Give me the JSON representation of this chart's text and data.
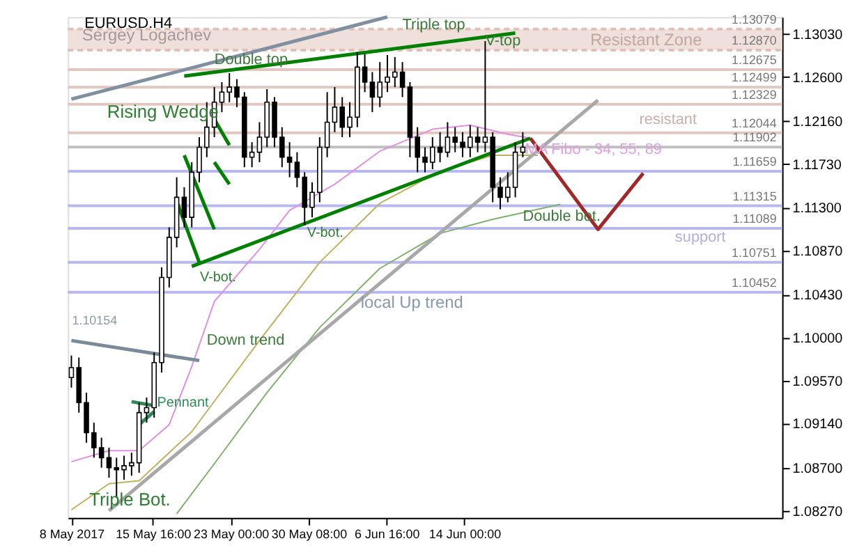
{
  "chart_data": {
    "type": "candlestick",
    "title": "EURUSD.H4",
    "xlim": [
      "2017-05-07T16:00",
      "2017-07-13T22:00"
    ],
    "xticks": [
      {
        "value": "2017-05-08T00:00",
        "label": "8 May 2017"
      },
      {
        "value": "2017-05-15T16:00",
        "label": "15 May 16:00"
      },
      {
        "value": "2017-05-23T00:00",
        "label": "23 May 00:00"
      },
      {
        "value": "2017-05-30T08:00",
        "label": "30 May 08:00"
      },
      {
        "value": "2017-06-06T16:00",
        "label": "6 Jun 16:00"
      },
      {
        "value": "2017-06-14T00:00",
        "label": "14 Jun 00:00"
      }
    ],
    "ylim": [
      1.082,
      1.132
    ],
    "yticks": [
      {
        "value": 1.0827,
        "label": "1.08270"
      },
      {
        "value": 1.087,
        "label": "1.08700"
      },
      {
        "value": 1.0914,
        "label": "1.09140"
      },
      {
        "value": 1.0957,
        "label": "1.09570"
      },
      {
        "value": 1.1,
        "label": "1.10000"
      },
      {
        "value": 1.1043,
        "label": "1.10430"
      },
      {
        "value": 1.1087,
        "label": "1.10870"
      },
      {
        "value": 1.113,
        "label": "1.11300"
      },
      {
        "value": 1.1173,
        "label": "1.11730"
      },
      {
        "value": 1.1216,
        "label": "1.12160"
      },
      {
        "value": 1.126,
        "label": "1.12600"
      },
      {
        "value": 1.1303,
        "label": "1.13030"
      }
    ],
    "grid": false,
    "series": [
      {
        "type": "candlestick",
        "color": "#000000",
        "x": [
          "2017-05-08T00:00",
          "2017-05-08T17:00",
          "2017-05-09T10:00",
          "2017-05-10T03:00",
          "2017-05-10T20:00",
          "2017-05-11T13:00",
          "2017-05-12T06:00",
          "2017-05-12T23:00",
          "2017-05-13T16:00",
          "2017-05-14T09:00",
          "2017-05-15T02:00",
          "2017-05-15T19:00",
          "2017-05-16T12:00",
          "2017-05-17T05:00",
          "2017-05-17T22:00",
          "2017-05-18T15:00",
          "2017-05-19T08:00",
          "2017-05-20T01:00",
          "2017-05-20T18:00",
          "2017-05-21T11:00",
          "2017-05-22T04:00",
          "2017-05-22T21:00",
          "2017-05-23T14:00",
          "2017-05-24T07:00",
          "2017-05-25T00:00",
          "2017-05-25T17:00",
          "2017-05-26T10:00",
          "2017-05-27T03:00",
          "2017-05-27T20:00",
          "2017-05-28T13:00",
          "2017-05-29T06:00",
          "2017-05-29T23:00",
          "2017-05-30T16:00",
          "2017-05-31T09:00",
          "2017-06-01T02:00",
          "2017-06-01T19:00",
          "2017-06-02T12:00",
          "2017-06-03T05:00",
          "2017-06-03T22:00",
          "2017-06-04T15:00",
          "2017-06-05T08:00",
          "2017-06-06T01:00",
          "2017-06-06T18:00",
          "2017-06-07T11:00",
          "2017-06-08T04:00",
          "2017-06-08T21:00",
          "2017-06-09T14:00",
          "2017-06-10T07:00",
          "2017-06-11T00:00",
          "2017-06-11T17:00",
          "2017-06-12T10:00",
          "2017-06-13T03:00",
          "2017-06-13T20:00",
          "2017-06-14T13:00",
          "2017-06-15T06:00",
          "2017-06-15T23:00",
          "2017-06-16T16:00",
          "2017-06-17T09:00",
          "2017-06-18T02:00",
          "2017-06-18T19:00",
          "2017-06-19T12:00"
        ],
        "ohlc": [
          [
            1.096,
            1.0982,
            1.095,
            1.097
          ],
          [
            1.097,
            1.098,
            1.0925,
            1.0935
          ],
          [
            1.0935,
            1.0945,
            1.0895,
            1.0905
          ],
          [
            1.0905,
            1.0915,
            1.088,
            1.089
          ],
          [
            1.089,
            1.09,
            1.087,
            1.088
          ],
          [
            1.088,
            1.089,
            1.086,
            1.087
          ],
          [
            1.087,
            1.088,
            1.084,
            1.0868
          ],
          [
            1.0868,
            1.0882,
            1.0858,
            1.0872
          ],
          [
            1.0872,
            1.0885,
            1.0862,
            1.0875
          ],
          [
            1.0875,
            1.0935,
            1.0865,
            1.0925
          ],
          [
            1.0925,
            1.094,
            1.0915,
            1.093
          ],
          [
            1.093,
            1.0985,
            1.092,
            1.0975
          ],
          [
            1.0975,
            1.107,
            1.0965,
            1.106
          ],
          [
            1.106,
            1.111,
            1.105,
            1.11
          ],
          [
            1.11,
            1.116,
            1.109,
            1.114
          ],
          [
            1.114,
            1.115,
            1.111,
            1.112
          ],
          [
            1.112,
            1.1175,
            1.111,
            1.1165
          ],
          [
            1.1165,
            1.12,
            1.1155,
            1.119
          ],
          [
            1.119,
            1.1235,
            1.118,
            1.121
          ],
          [
            1.121,
            1.125,
            1.12,
            1.1235
          ],
          [
            1.1235,
            1.1255,
            1.1225,
            1.1245
          ],
          [
            1.1245,
            1.1264,
            1.1235,
            1.125
          ],
          [
            1.125,
            1.1258,
            1.123,
            1.124
          ],
          [
            1.124,
            1.1245,
            1.117,
            1.118
          ],
          [
            1.118,
            1.1195,
            1.117,
            1.1185
          ],
          [
            1.1185,
            1.1215,
            1.1175,
            1.12
          ],
          [
            1.12,
            1.1248,
            1.119,
            1.1235
          ],
          [
            1.1235,
            1.124,
            1.119,
            1.12
          ],
          [
            1.12,
            1.121,
            1.117,
            1.118
          ],
          [
            1.118,
            1.1195,
            1.116,
            1.1175
          ],
          [
            1.1175,
            1.1185,
            1.115,
            1.116
          ],
          [
            1.116,
            1.1165,
            1.1112,
            1.113
          ],
          [
            1.113,
            1.1155,
            1.112,
            1.1145
          ],
          [
            1.1145,
            1.12,
            1.1135,
            1.119
          ],
          [
            1.119,
            1.1245,
            1.118,
            1.1215
          ],
          [
            1.1215,
            1.125,
            1.1205,
            1.123
          ],
          [
            1.123,
            1.124,
            1.12,
            1.121
          ],
          [
            1.121,
            1.1235,
            1.12,
            1.122
          ],
          [
            1.122,
            1.1285,
            1.121,
            1.127
          ],
          [
            1.127,
            1.1283,
            1.1245,
            1.1255
          ],
          [
            1.1255,
            1.1265,
            1.1225,
            1.124
          ],
          [
            1.124,
            1.1275,
            1.123,
            1.1255
          ],
          [
            1.1255,
            1.1282,
            1.1245,
            1.126
          ],
          [
            1.126,
            1.128,
            1.125,
            1.1265
          ],
          [
            1.1265,
            1.1275,
            1.124,
            1.125
          ],
          [
            1.125,
            1.1255,
            1.118,
            1.12
          ],
          [
            1.12,
            1.121,
            1.1165,
            1.118
          ],
          [
            1.118,
            1.119,
            1.1165,
            1.1175
          ],
          [
            1.1175,
            1.12,
            1.1168,
            1.119
          ],
          [
            1.119,
            1.1205,
            1.1175,
            1.1185
          ],
          [
            1.1185,
            1.1215,
            1.118,
            1.12
          ],
          [
            1.12,
            1.121,
            1.1185,
            1.1195
          ],
          [
            1.1195,
            1.1205,
            1.118,
            1.119
          ],
          [
            1.119,
            1.1212,
            1.118,
            1.12
          ],
          [
            1.12,
            1.121,
            1.1185,
            1.1195
          ],
          [
            1.1195,
            1.1296,
            1.1185,
            1.12
          ],
          [
            1.12,
            1.1205,
            1.1135,
            1.115
          ],
          [
            1.115,
            1.116,
            1.1128,
            1.114
          ],
          [
            1.114,
            1.1165,
            1.1135,
            1.115
          ],
          [
            1.115,
            1.1195,
            1.114,
            1.1185
          ],
          [
            1.1185,
            1.1205,
            1.118,
            1.119
          ]
        ]
      },
      {
        "type": "line",
        "color": "#e090e0",
        "x": [
          "2017-05-08T00:00",
          "2017-05-11T13:00",
          "2017-05-14T09:00",
          "2017-05-17T05:00",
          "2017-05-19T08:00",
          "2017-05-21T11:00",
          "2017-05-25T17:00",
          "2017-05-28T13:00",
          "2017-06-01T19:00",
          "2017-06-06T01:00",
          "2017-06-11T00:00",
          "2017-06-14T13:00",
          "2017-06-18T02:00",
          "2017-06-20T05:00"
        ],
        "values": [
          1.0876,
          1.0887,
          1.0887,
          1.0913,
          1.0971,
          1.1036,
          1.1088,
          1.1127,
          1.1153,
          1.1186,
          1.1208,
          1.1212,
          1.1203,
          1.1199
        ]
      },
      {
        "type": "line",
        "color": "#c0b060",
        "x": [
          "2017-05-08T00:00",
          "2017-05-11T13:00",
          "2017-05-14T09:00",
          "2017-05-19T08:00",
          "2017-05-25T17:00",
          "2017-05-31T09:00",
          "2017-06-06T01:00",
          "2017-06-11T17:00",
          "2017-06-16T16:00",
          "2017-06-20T22:00"
        ],
        "values": [
          1.0828,
          1.0854,
          1.0857,
          1.0906,
          1.0997,
          1.1075,
          1.1134,
          1.1166,
          1.1182,
          1.1182
        ]
      },
      {
        "type": "line",
        "color": "#80b070",
        "x": [
          "2017-05-17T22:00",
          "2017-05-21T11:00",
          "2017-05-26T10:00",
          "2017-05-31T09:00",
          "2017-06-06T01:00",
          "2017-06-11T17:00",
          "2017-06-16T16:00",
          "2017-06-23T01:00"
        ],
        "values": [
          1.0824,
          1.0874,
          1.0945,
          1.101,
          1.1069,
          1.1104,
          1.1118,
          1.1133
        ]
      },
      {
        "type": "line",
        "color": "#008000",
        "x": [
          "2017-05-19T08:00",
          "2017-06-20T05:00"
        ],
        "values": [
          1.1071,
          1.1199
        ]
      },
      {
        "type": "line",
        "color": "#008000",
        "x": [
          "2017-05-18T15:00",
          "2017-06-18T19:00"
        ],
        "values": [
          1.1261,
          1.1304
        ]
      },
      {
        "type": "line",
        "color": "#8090a0",
        "x": [
          "2017-05-08T00:00",
          "2017-06-06T18:00"
        ],
        "values": [
          1.1238,
          1.132
        ]
      },
      {
        "type": "line",
        "color": "#a8a8a8",
        "x": [
          "2017-05-11T13:00",
          "2017-06-26T14:00"
        ],
        "values": [
          1.0827,
          1.1237
        ]
      },
      {
        "type": "line",
        "color": "#7a8a9a",
        "x": [
          "2017-05-08T00:00",
          "2017-05-20T01:00"
        ],
        "values": [
          1.0997,
          1.0977
        ]
      },
      {
        "type": "line",
        "color": "#a02828",
        "x": [
          "2017-06-20T05:00",
          "2017-06-26T14:00",
          "2017-06-30T20:00"
        ],
        "values": [
          1.1199,
          1.1108,
          1.1164
        ]
      },
      {
        "type": "line",
        "color": "#008000",
        "x": [
          "2017-05-18T15:00",
          "2017-05-21T11:00"
        ],
        "values": [
          1.1182,
          1.1108
        ]
      },
      {
        "type": "line",
        "color": "#008000",
        "x": [
          "2017-05-17T22:00",
          "2017-05-20T01:00"
        ],
        "values": [
          1.1136,
          1.1075
        ]
      },
      {
        "type": "line",
        "color": "#008000",
        "x": [
          "2017-05-21T11:00",
          "2017-05-22T21:00"
        ],
        "values": [
          1.1218,
          1.1192
        ]
      },
      {
        "type": "line",
        "color": "#008000",
        "x": [
          "2017-05-21T11:00",
          "2017-05-22T21:00"
        ],
        "values": [
          1.1175,
          1.1153
        ]
      },
      {
        "type": "line",
        "color": "#2e8b57",
        "x": [
          "2017-05-13T16:00",
          "2017-05-15T19:00"
        ],
        "values": [
          1.0936,
          1.0932
        ]
      },
      {
        "type": "line",
        "color": "#2e8b57",
        "x": [
          "2017-05-14T09:00",
          "2017-05-15T19:00"
        ],
        "values": [
          1.0913,
          1.0926
        ]
      }
    ],
    "bands": [
      {
        "axis": "y",
        "from": 1.1287,
        "to": 1.13079,
        "label": "Resistant Zone",
        "color": "#f0e0dc"
      }
    ],
    "ref_lines": [
      {
        "axis": "y",
        "value": 1.13079,
        "label": "1.13079",
        "color": "#e0c0b8",
        "line_style": "dashed"
      },
      {
        "axis": "y",
        "value": 1.1287,
        "label": "1.12870",
        "color": "#e0c0b8",
        "line_style": "dashed"
      },
      {
        "axis": "y",
        "value": 1.12675,
        "label": "1.12675",
        "color": "#e2c6c0",
        "line_style": "solid"
      },
      {
        "axis": "y",
        "value": 1.12499,
        "label": "1.12499",
        "color": "#e2c6c0",
        "line_style": "solid"
      },
      {
        "axis": "y",
        "value": 1.12329,
        "label": "1.12329",
        "color": "#e2c6c0",
        "line_style": "solid"
      },
      {
        "axis": "y",
        "value": 1.12044,
        "label": "1.12044",
        "color": "#e2c6c0",
        "line_style": "solid"
      },
      {
        "axis": "y",
        "value": 1.11902,
        "label": "1.11902",
        "color": "#c0c0c0",
        "line_style": "solid"
      },
      {
        "axis": "y",
        "value": 1.11659,
        "label": "1.11659",
        "color": "#b8b8f0",
        "line_style": "solid"
      },
      {
        "axis": "y",
        "value": 1.11315,
        "label": "1.11315",
        "color": "#b8b8f0",
        "line_style": "solid"
      },
      {
        "axis": "y",
        "value": 1.11089,
        "label": "1.11089",
        "color": "#b8b8f0",
        "line_style": "solid"
      },
      {
        "axis": "y",
        "value": 1.10751,
        "label": "1.10751",
        "color": "#b8b8f0",
        "line_style": "solid"
      },
      {
        "axis": "y",
        "value": 1.10452,
        "label": "1.10452",
        "color": "#b8b8f0",
        "line_style": "solid"
      }
    ],
    "annotations": [
      "Sergey Logachev",
      {
        "text": "Triple top",
        "x": "2017-06-08T04:00",
        "y": 1.1312
      },
      {
        "text": "Double top",
        "x": "2017-05-21T11:00",
        "y": 1.1277
      },
      "Rising Wedge",
      {
        "text": "V-top",
        "x": "2017-06-15T23:00",
        "y": 1.1296
      },
      "resistant",
      "MA Fibo - 34; 55; 89",
      "V-bot.",
      "V-bot.",
      {
        "text": "Double bot.",
        "x": "2017-06-19T12:00",
        "y": 1.1121
      },
      "support",
      "local Up trend",
      "1.10154",
      {
        "text": "Down trend",
        "x": "2017-05-20T18:00",
        "y": 1.0997
      },
      "Pennant",
      "Triple Bot."
    ]
  }
}
